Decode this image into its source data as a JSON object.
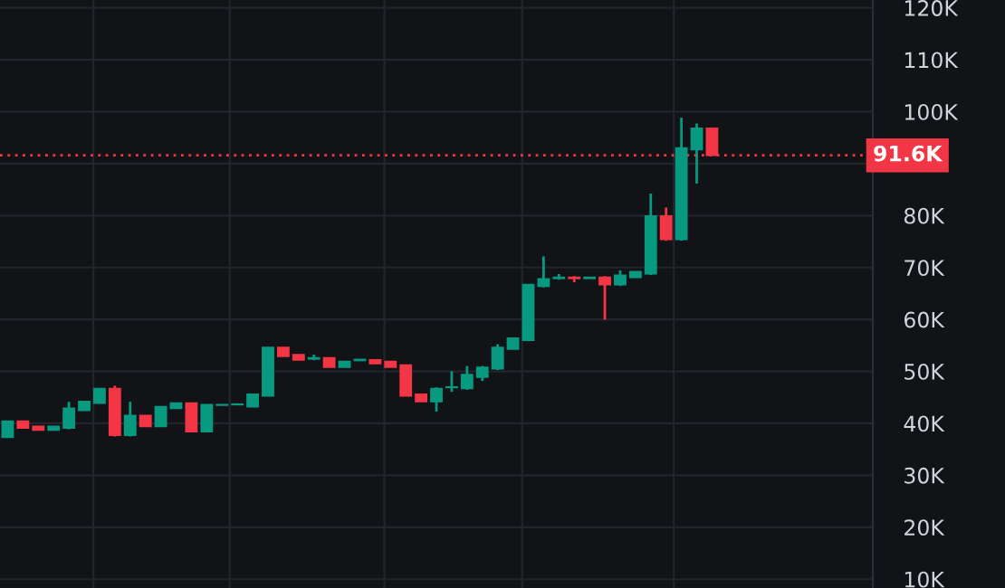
{
  "chart_data": {
    "type": "candlestick",
    "categories": [
      null,
      null,
      null,
      null,
      null,
      null,
      null,
      null,
      null,
      null,
      null,
      null,
      null,
      null,
      null,
      null,
      null,
      null,
      null,
      null,
      null,
      null,
      null,
      null,
      null,
      null,
      null,
      null,
      null,
      null,
      null,
      null,
      null,
      null,
      null,
      null,
      null,
      null,
      null,
      null,
      null,
      null,
      null,
      null,
      null,
      null,
      null,
      null,
      null,
      null,
      null,
      null,
      null,
      null,
      null,
      null,
      null
    ],
    "ohlc": [
      [
        37.3,
        40.4,
        37.3,
        40.4
      ],
      [
        40.4,
        40.4,
        39.1,
        39.1
      ],
      [
        39.4,
        39.4,
        38.7,
        38.7
      ],
      [
        38.7,
        39.4,
        38.7,
        39.4
      ],
      [
        39.1,
        43.9,
        39.1,
        42.9
      ],
      [
        42.5,
        44.2,
        42.5,
        44.2
      ],
      [
        43.9,
        46.7,
        43.9,
        46.7
      ],
      [
        46.7,
        47.0,
        37.7,
        37.7
      ],
      [
        37.7,
        43.9,
        37.7,
        41.5
      ],
      [
        41.5,
        41.5,
        39.4,
        39.4
      ],
      [
        39.4,
        43.2,
        39.4,
        43.2
      ],
      [
        42.9,
        43.9,
        42.9,
        43.9
      ],
      [
        43.9,
        43.9,
        38.4,
        38.4
      ],
      [
        38.4,
        43.6,
        38.4,
        43.6
      ],
      [
        43.5,
        43.6,
        43.5,
        43.6
      ],
      [
        43.6,
        43.7,
        43.6,
        43.7
      ],
      [
        43.2,
        45.6,
        43.2,
        45.6
      ],
      [
        45.3,
        54.6,
        45.3,
        54.6
      ],
      [
        54.6,
        54.6,
        52.9,
        52.9
      ],
      [
        53.2,
        53.2,
        52.2,
        52.2
      ],
      [
        52.4,
        53.0,
        52.4,
        52.6
      ],
      [
        52.6,
        52.6,
        50.8,
        50.8
      ],
      [
        50.8,
        51.9,
        50.8,
        51.9
      ],
      [
        52.1,
        52.3,
        52.1,
        52.3
      ],
      [
        52.2,
        52.2,
        51.5,
        51.5
      ],
      [
        51.9,
        51.9,
        50.8,
        50.8
      ],
      [
        51.2,
        51.2,
        45.3,
        45.3
      ],
      [
        45.6,
        45.6,
        44.2,
        44.2
      ],
      [
        44.2,
        46.7,
        42.5,
        46.7
      ],
      [
        46.9,
        49.8,
        46.3,
        47.0
      ],
      [
        46.7,
        50.8,
        46.7,
        49.4
      ],
      [
        48.9,
        50.8,
        48.4,
        50.8
      ],
      [
        50.5,
        55.0,
        50.5,
        54.6
      ],
      [
        54.3,
        56.4,
        54.3,
        56.4
      ],
      [
        56.0,
        66.7,
        56.0,
        66.7
      ],
      [
        66.4,
        71.9,
        66.4,
        67.8
      ],
      [
        67.9,
        68.5,
        67.9,
        68.1
      ],
      [
        68.1,
        68.1,
        67.4,
        67.9
      ],
      [
        67.9,
        68.1,
        67.9,
        68.1
      ],
      [
        68.1,
        68.1,
        60.2,
        66.7
      ],
      [
        66.7,
        69.2,
        66.7,
        68.5
      ],
      [
        68.1,
        69.2,
        68.1,
        69.2
      ],
      [
        68.8,
        84.0,
        68.8,
        79.9
      ],
      [
        79.9,
        81.3,
        75.4,
        75.4
      ],
      [
        75.4,
        98.6,
        75.4,
        93.0
      ],
      [
        92.7,
        97.5,
        86.4,
        96.8
      ],
      [
        96.8,
        96.8,
        91.6,
        91.6
      ],
      null,
      null,
      null,
      null,
      null,
      null,
      null,
      null,
      null,
      null
    ],
    "colors": [
      "#089981",
      "#f23645",
      "#f23645",
      "#089981",
      "#089981",
      "#089981",
      "#089981",
      "#f23645",
      "#089981",
      "#f23645",
      "#089981",
      "#089981",
      "#f23645",
      "#089981",
      "#089981",
      "#089981",
      "#089981",
      "#089981",
      "#f23645",
      "#f23645",
      "#089981",
      "#f23645",
      "#089981",
      "#089981",
      "#f23645",
      "#f23645",
      "#f23645",
      "#f23645",
      "#089981",
      "#089981",
      "#089981",
      "#089981",
      "#089981",
      "#089981",
      "#089981",
      "#089981",
      "#089981",
      "#f23645",
      "#089981",
      "#f23645",
      "#089981",
      "#089981",
      "#089981",
      "#f23645",
      "#089981",
      "#089981",
      "#f23645",
      null,
      null,
      null,
      null,
      null,
      null,
      null,
      null,
      null,
      null
    ],
    "ylim": [
      8.3,
      121.5
    ],
    "yticks": [
      {
        "value": 10,
        "label": "10K"
      },
      {
        "value": 20,
        "label": "20K"
      },
      {
        "value": 30,
        "label": "30K"
      },
      {
        "value": 40,
        "label": "40K"
      },
      {
        "value": 50,
        "label": "50K"
      },
      {
        "value": 60,
        "label": "60K"
      },
      {
        "value": 70,
        "label": "70K"
      },
      {
        "value": 80,
        "label": "80K"
      },
      {
        "value": 90,
        "label": null
      },
      {
        "value": 100,
        "label": "100K"
      },
      {
        "value": 110,
        "label": "110K"
      },
      {
        "value": 120,
        "label": "120K"
      }
    ],
    "grid": "y",
    "tick_labels": "y",
    "ref_lines": [
      {
        "axis": "y",
        "value": 91.6,
        "label": "91.6K",
        "color": "#f23645",
        "line_style": "dotted"
      }
    ]
  }
}
